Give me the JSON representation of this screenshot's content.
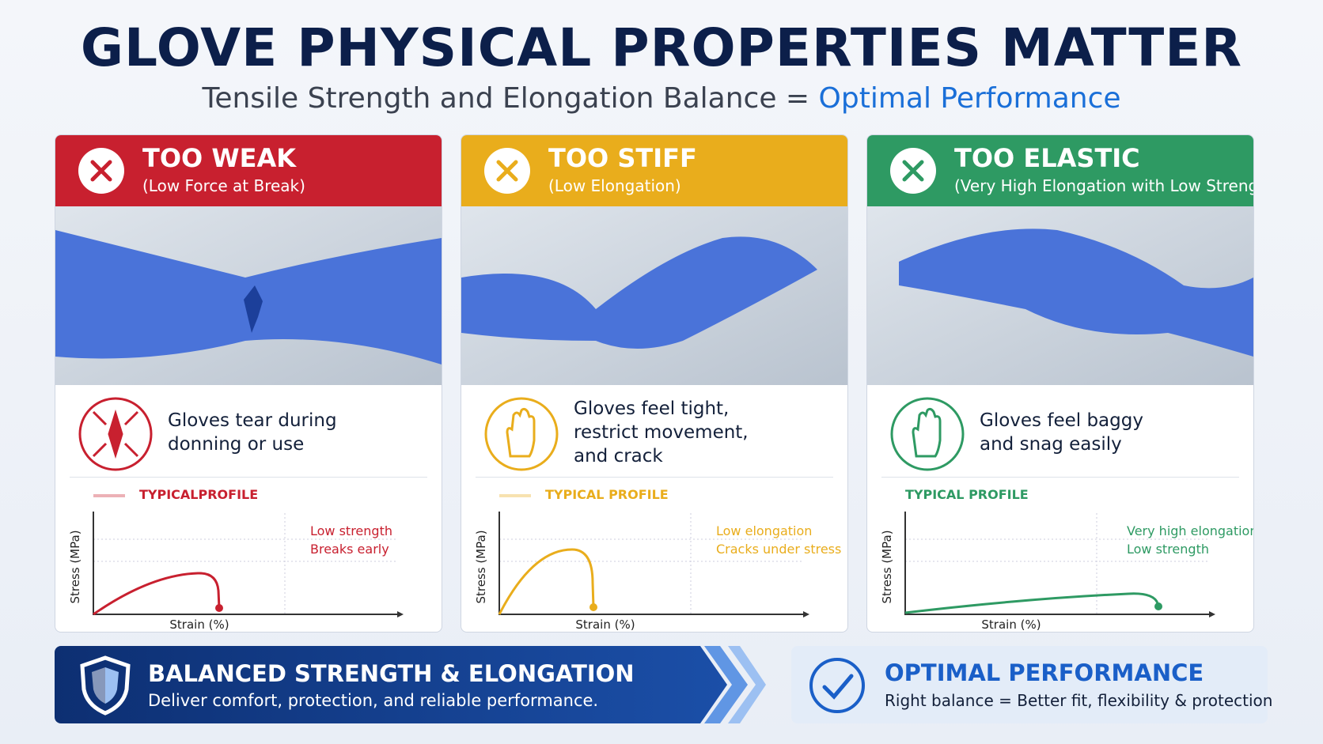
{
  "header": {
    "title": "GLOVE PHYSICAL PROPERTIES MATTER",
    "subtitle": "Tensile Strength and Elongation Balance =",
    "subtitle_highlight": "Optimal Performance"
  },
  "cards": [
    {
      "title": "TOO WEAK",
      "subtitle": "(Low Force at Break)",
      "description": [
        "Gloves tear during",
        "donning or use"
      ],
      "profile_label": "TYPICALPROFILE",
      "y_axis_label": "Stress (MPa)",
      "x_axis_label": "Strain (%)",
      "notes": [
        "Low strength",
        "Breaks early"
      ],
      "color": "#c8202f"
    },
    {
      "title": "TOO STIFF",
      "subtitle": "(Low Elongation)",
      "description": [
        "Gloves feel tight,",
        "restrict movement,",
        "and crack"
      ],
      "profile_label": "TYPICAL PROFILE",
      "y_axis_label": "Stress (MPa)",
      "x_axis_label": "Strain (%)",
      "notes": [
        "Low elongation",
        "Cracks under stress"
      ],
      "color": "#e9ad1c"
    },
    {
      "title": "TOO ELASTIC",
      "subtitle": "(Very High Elongation with Low Strength)",
      "description": [
        "Gloves feel baggy",
        "and snag easily"
      ],
      "profile_label": "TYPICAL PROFILE",
      "y_axis_label": "Stress (MPa)",
      "x_axis_label": "Strain (%)",
      "notes": [
        "Very high elongation",
        "Low strength"
      ],
      "color": "#2e9a63"
    }
  ],
  "footer": {
    "left_title": "BALANCED STRENGTH & ELONGATION",
    "left_text": "Deliver comfort, protection, and reliable performance.",
    "right_title": "OPTIMAL PERFORMANCE",
    "right_text": "Right balance = Better fit, flexibility & protection"
  }
}
